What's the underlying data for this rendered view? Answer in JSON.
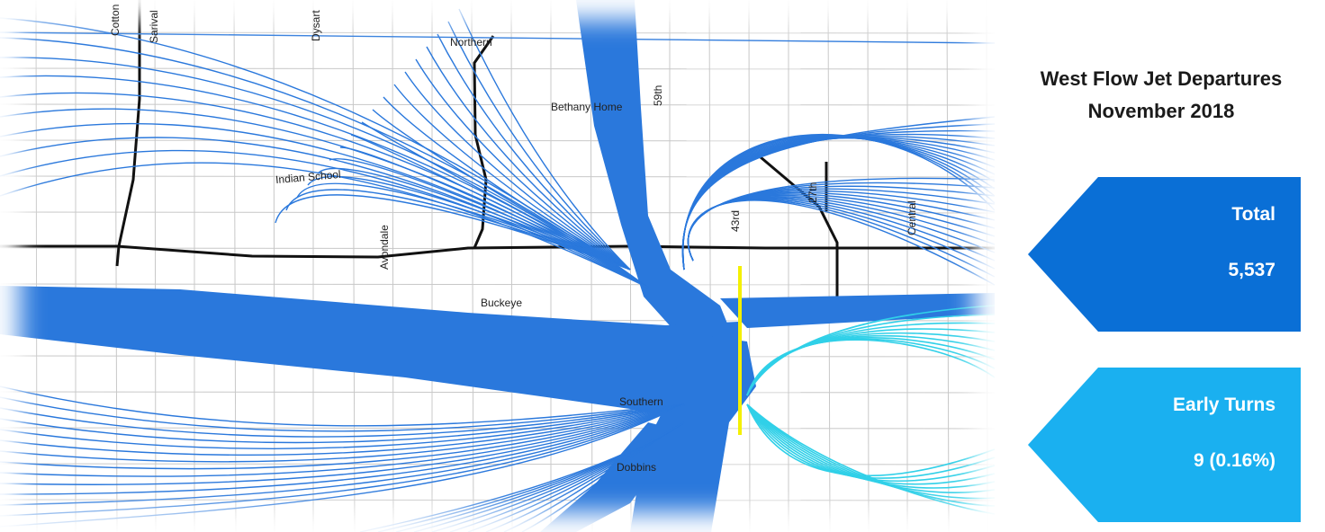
{
  "title_line1": "West Flow Jet Departures",
  "title_line2": "November 2018",
  "callouts": {
    "total": {
      "label": "Total",
      "value": "5,537",
      "color": "#0a6fd6"
    },
    "early_turns": {
      "label": "Early Turns",
      "value": "9 (0.16%)",
      "color": "#1ab0f0"
    }
  },
  "map": {
    "roads": {
      "cotton": "Cotton",
      "sarival": "Sarival",
      "dysart": "Dysart",
      "northern": "Northern",
      "bethany_home": "Bethany Home",
      "fifty_ninth": "59th",
      "indian_school": "Indian School",
      "avondale": "Avondale",
      "forty_third": "43rd",
      "twenty_seventh": "27th",
      "central": "Central",
      "buckeye": "Buckeye",
      "southern": "Southern",
      "dobbins": "Dobbins"
    },
    "colors": {
      "track": "#2a78dc",
      "early_turn_track": "#30d0e8",
      "gate_line": "#f4f000",
      "highway": "#111111",
      "street": "#c8c8c8"
    }
  }
}
